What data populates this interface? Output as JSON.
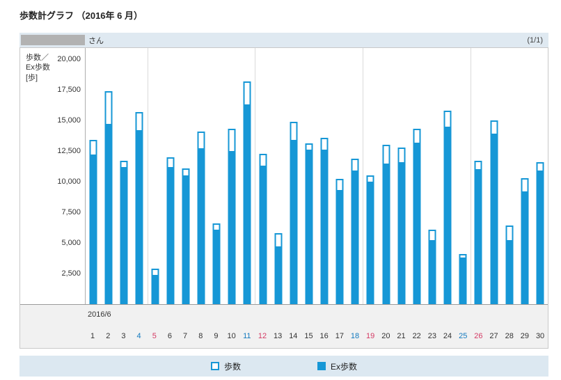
{
  "page": {
    "title": "歩数計グラフ （2016年 6 月）"
  },
  "header": {
    "name_suffix": "さん",
    "page_indicator": "(1/1)"
  },
  "chart_data": {
    "type": "bar",
    "title": "歩数計グラフ （2016年 6 月）",
    "ylabel": "歩数／Ex歩数 [歩]",
    "ylabel_lines": [
      "歩数／",
      "Ex歩数",
      "[歩]"
    ],
    "month_label": "2016/6",
    "ylim": [
      0,
      20000
    ],
    "yticks": [
      2500,
      5000,
      7500,
      10000,
      12500,
      15000,
      17500,
      20000
    ],
    "categories": [
      1,
      2,
      3,
      4,
      5,
      6,
      7,
      8,
      9,
      10,
      11,
      12,
      13,
      14,
      15,
      16,
      17,
      18,
      19,
      20,
      21,
      22,
      23,
      24,
      25,
      26,
      27,
      28,
      29,
      30
    ],
    "series": [
      {
        "name": "歩数",
        "values": [
          13400,
          17400,
          11700,
          15700,
          2900,
          12000,
          11100,
          14100,
          6600,
          14300,
          18200,
          12300,
          5800,
          14900,
          13100,
          13600,
          10200,
          11900,
          10500,
          13000,
          12800,
          14300,
          6100,
          15800,
          4100,
          11700,
          15000,
          6400,
          10300,
          11600
        ]
      },
      {
        "name": "Ex歩数",
        "values": [
          12200,
          14700,
          11200,
          14200,
          2400,
          11200,
          10500,
          12700,
          6100,
          12500,
          16300,
          11300,
          4700,
          13400,
          12600,
          12600,
          9300,
          10900,
          10000,
          11500,
          11600,
          13200,
          5200,
          14500,
          3800,
          11000,
          13900,
          5200,
          9200,
          10900
        ]
      }
    ],
    "saturdays": [
      4,
      11,
      18,
      25
    ],
    "sundays": [
      5,
      12,
      19,
      26
    ],
    "week_separators_at": [
      4,
      11,
      18,
      25
    ],
    "grid": false,
    "legend_position": "bottom",
    "colors": {
      "bar": "#1697d6",
      "saturday_label": "#1279be",
      "sunday_label": "#d43a64",
      "weekday_label": "#333333"
    }
  },
  "legend": {
    "items": [
      {
        "label": "歩数",
        "swatch": "outline"
      },
      {
        "label": "Ex歩数",
        "swatch": "solid"
      }
    ]
  }
}
